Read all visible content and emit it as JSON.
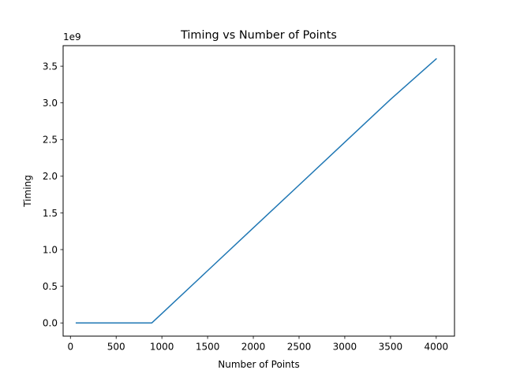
{
  "chart_data": {
    "type": "line",
    "title": "Timing vs Number of Points",
    "xlabel": "Number of Points",
    "ylabel": "Timing",
    "y_offset_label": "1e9",
    "xlim": [
      -80,
      4200
    ],
    "ylim": [
      -0.18,
      3.78
    ],
    "x_ticks": [
      0,
      500,
      1000,
      1500,
      2000,
      2500,
      3000,
      3500,
      4000
    ],
    "x_tick_labels": [
      "0",
      "500",
      "1000",
      "1500",
      "2000",
      "2500",
      "3000",
      "3500",
      "4000"
    ],
    "y_ticks": [
      0.0,
      0.5,
      1.0,
      1.5,
      2.0,
      2.5,
      3.0,
      3.5
    ],
    "y_tick_labels": [
      "0.0",
      "0.5",
      "1.0",
      "1.5",
      "2.0",
      "2.5",
      "3.0",
      "3.5"
    ],
    "grid": false,
    "series": [
      {
        "color": "#1f77b4",
        "x": [
          64,
          100,
          200,
          300,
          400,
          500,
          600,
          700,
          800,
          890,
          1000,
          1500,
          2000,
          2500,
          3000,
          3500,
          4000
        ],
        "y": [
          0.0,
          0.0,
          0.0,
          0.0,
          0.0,
          0.0,
          0.0,
          0.0,
          0.0,
          0.0,
          0.128,
          0.712,
          1.296,
          1.879,
          2.463,
          3.047,
          3.6
        ]
      }
    ]
  }
}
